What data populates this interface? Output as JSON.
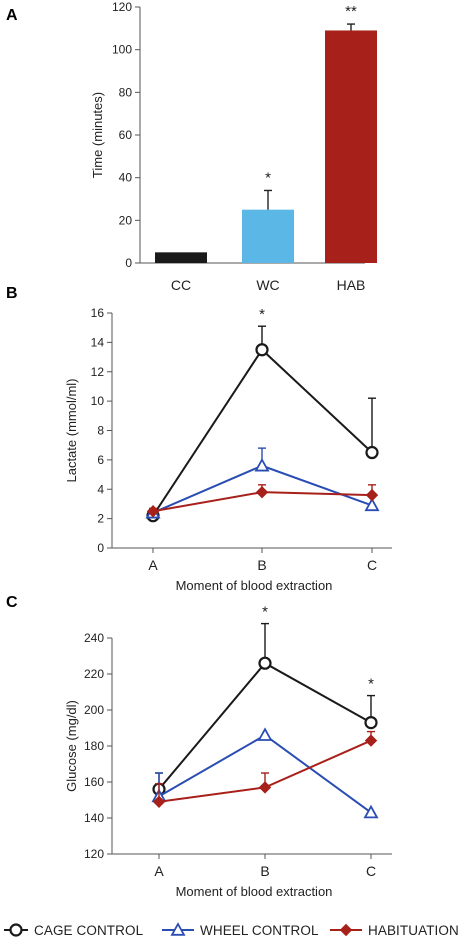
{
  "chart_data": [
    {
      "panel": "A",
      "type": "bar",
      "ylabel": "Time (minutes)",
      "ylim": [
        0,
        120
      ],
      "yticks": [
        0,
        20,
        40,
        60,
        80,
        100,
        120
      ],
      "categories": [
        "CC",
        "WC",
        "HAB"
      ],
      "values": [
        5,
        25,
        109
      ],
      "errors": [
        0,
        9,
        3
      ],
      "colors": [
        "#1a1a1a",
        "#5bb8e6",
        "#a8201a"
      ],
      "annotations": [
        "",
        "*",
        "**"
      ]
    },
    {
      "panel": "B",
      "type": "line",
      "xlabel": "Moment of blood extraction",
      "ylabel": "Lactate (mmol/ml)",
      "ylim": [
        0,
        16
      ],
      "yticks": [
        0,
        2,
        4,
        6,
        8,
        10,
        12,
        14,
        16
      ],
      "categories": [
        "A",
        "B",
        "C"
      ],
      "series": [
        {
          "name": "CAGE CONTROL",
          "values": [
            2.2,
            13.5,
            6.5
          ],
          "errors": [
            0.2,
            1.6,
            3.7
          ],
          "color": "#1a1a1a",
          "marker": "circle"
        },
        {
          "name": "WHEEL CONTROL",
          "values": [
            2.4,
            5.6,
            2.9
          ],
          "errors": [
            0.2,
            1.2,
            0.6
          ],
          "color": "#2a4db4",
          "marker": "triangle"
        },
        {
          "name": "HABITUATION",
          "values": [
            2.5,
            3.8,
            3.6
          ],
          "errors": [
            0.2,
            0.5,
            0.7
          ],
          "color": "#a8201a",
          "marker": "diamond"
        }
      ],
      "annotations": [
        {
          "category": "B",
          "text": "*"
        }
      ]
    },
    {
      "panel": "C",
      "type": "line",
      "xlabel": "Moment of blood extraction",
      "ylabel": "Glucose (mg/dl)",
      "ylim": [
        120,
        240
      ],
      "yticks": [
        120,
        140,
        160,
        180,
        200,
        220,
        240
      ],
      "categories": [
        "A",
        "B",
        "C"
      ],
      "series": [
        {
          "name": "CAGE CONTROL",
          "values": [
            156,
            226,
            193
          ],
          "errors": [
            9,
            22,
            15
          ],
          "color": "#1a1a1a",
          "marker": "circle"
        },
        {
          "name": "WHEEL CONTROL",
          "values": [
            152,
            186,
            143
          ],
          "errors": [
            13,
            0,
            0
          ],
          "color": "#2a4db4",
          "marker": "triangle"
        },
        {
          "name": "HABITUATION",
          "values": [
            149,
            157,
            183
          ],
          "errors": [
            10,
            8,
            5
          ],
          "color": "#a8201a",
          "marker": "diamond"
        }
      ],
      "annotations": [
        {
          "category": "B",
          "text": "*"
        },
        {
          "category": "C",
          "text": "*"
        }
      ]
    }
  ],
  "legend": [
    {
      "label": "CAGE CONTROL",
      "color": "#1a1a1a",
      "marker": "circle"
    },
    {
      "label": "WHEEL CONTROL",
      "color": "#2a4db4",
      "marker": "triangle"
    },
    {
      "label": "HABITUATION",
      "color": "#a8201a",
      "marker": "diamond"
    }
  ]
}
